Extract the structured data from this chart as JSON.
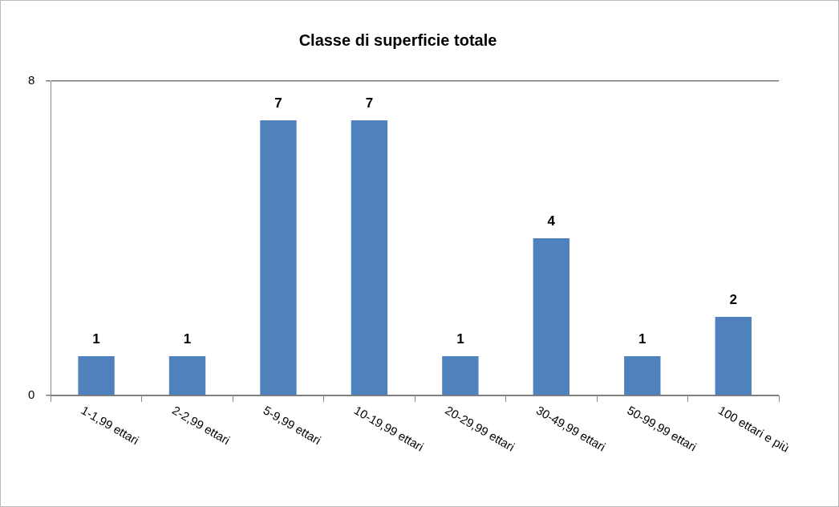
{
  "chart_data": {
    "type": "bar",
    "title": "Classe di superficie totale",
    "categories": [
      "1-1,99 ettari",
      "2-2,99 ettari",
      "5-9,99 ettari",
      "10-19,99 ettari",
      "20-29,99 ettari",
      "30-49,99 ettari",
      "50-99,99 ettari",
      "100 ettari e più"
    ],
    "values": [
      1,
      1,
      7,
      7,
      1,
      4,
      1,
      2
    ],
    "color": "#4f81bd",
    "ylim": [
      0,
      8
    ],
    "yticks": [
      0,
      8
    ],
    "grid": "y",
    "legend": false,
    "data_labels": true
  }
}
